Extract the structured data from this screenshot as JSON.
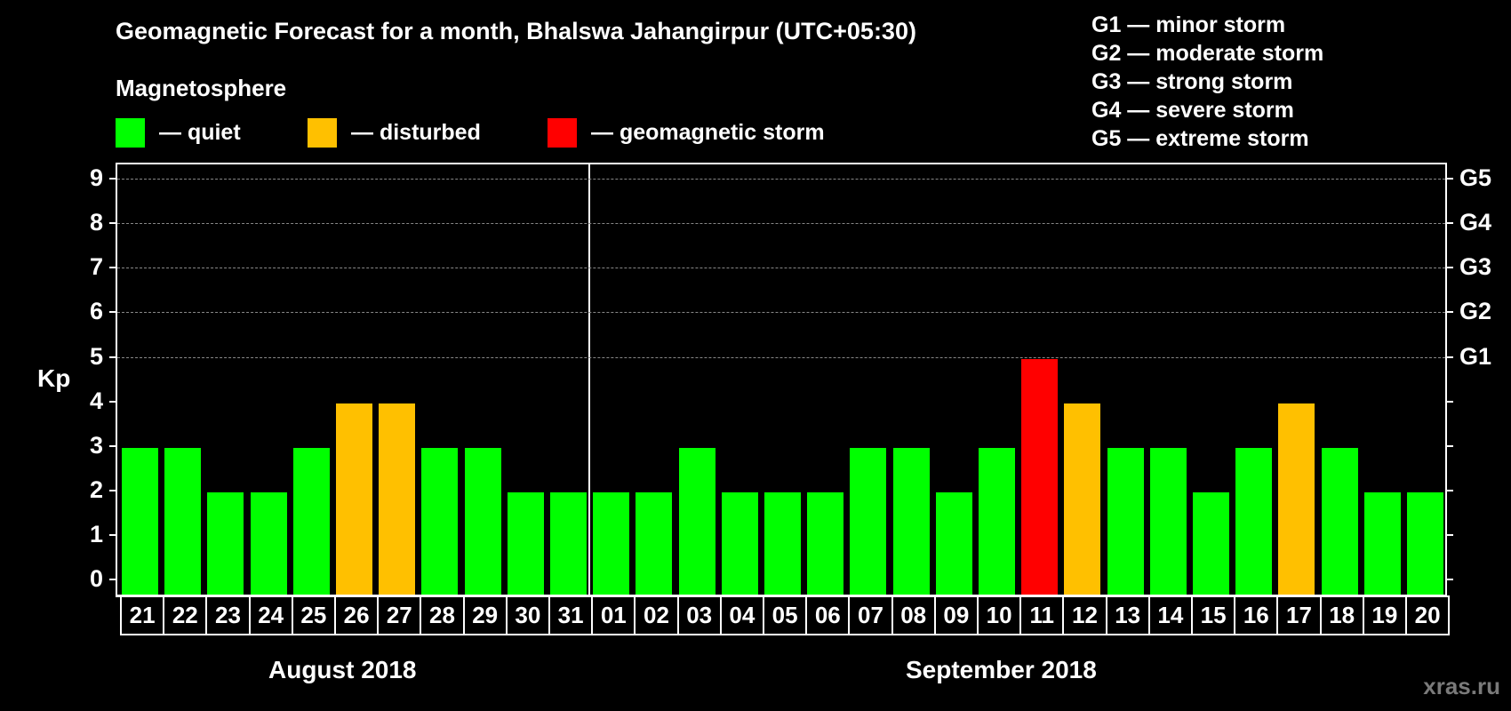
{
  "header": {
    "title": "Geomagnetic Forecast for a month, Bhalswa Jahangirpur (UTC+05:30)",
    "subtitle": "Magnetosphere"
  },
  "legend": [
    {
      "label": "— quiet",
      "color": "#00ff00"
    },
    {
      "label": "— disturbed",
      "color": "#ffc000"
    },
    {
      "label": "— geomagnetic storm",
      "color": "#ff0000"
    }
  ],
  "storm_scale": [
    "G1 — minor storm",
    "G2 — moderate storm",
    "G3 — strong storm",
    "G4 — severe storm",
    "G5 — extreme storm"
  ],
  "axis": {
    "y_label": "Kp",
    "y_ticks": [
      "0",
      "1",
      "2",
      "3",
      "4",
      "5",
      "6",
      "7",
      "8",
      "9"
    ],
    "right_ticks": [
      {
        "kp": 5,
        "label": "G1"
      },
      {
        "kp": 6,
        "label": "G2"
      },
      {
        "kp": 7,
        "label": "G3"
      },
      {
        "kp": 8,
        "label": "G4"
      },
      {
        "kp": 9,
        "label": "G5"
      }
    ]
  },
  "months": [
    {
      "label": "August 2018"
    },
    {
      "label": "September 2018"
    }
  ],
  "watermark": "xras.ru",
  "colors": {
    "quiet": "#00ff00",
    "disturbed": "#ffc000",
    "storm": "#ff0000",
    "grid": "#888888",
    "background": "#000000"
  },
  "chart_data": {
    "type": "bar",
    "title": "Geomagnetic Forecast for a month, Bhalswa Jahangirpur (UTC+05:30)",
    "xlabel": "",
    "ylabel": "Kp",
    "ylim": [
      0,
      9
    ],
    "grid": "dashed horizontal at Kp 5–9",
    "categories": [
      "21",
      "22",
      "23",
      "24",
      "25",
      "26",
      "27",
      "28",
      "29",
      "30",
      "31",
      "01",
      "02",
      "03",
      "04",
      "05",
      "06",
      "07",
      "08",
      "09",
      "10",
      "11",
      "12",
      "13",
      "14",
      "15",
      "16",
      "17",
      "18",
      "19",
      "20"
    ],
    "month_groups": [
      {
        "label": "August 2018",
        "from": "21",
        "to": "31"
      },
      {
        "label": "September 2018",
        "from": "01",
        "to": "20"
      }
    ],
    "values": [
      3,
      3,
      2,
      2,
      3,
      4,
      4,
      3,
      3,
      2,
      2,
      2,
      2,
      3,
      2,
      2,
      2,
      3,
      3,
      2,
      3,
      5,
      4,
      3,
      3,
      2,
      3,
      4,
      3,
      2,
      2
    ],
    "levels": [
      "quiet",
      "quiet",
      "quiet",
      "quiet",
      "quiet",
      "disturbed",
      "disturbed",
      "quiet",
      "quiet",
      "quiet",
      "quiet",
      "quiet",
      "quiet",
      "quiet",
      "quiet",
      "quiet",
      "quiet",
      "quiet",
      "quiet",
      "quiet",
      "quiet",
      "storm",
      "disturbed",
      "quiet",
      "quiet",
      "quiet",
      "quiet",
      "disturbed",
      "quiet",
      "quiet",
      "quiet"
    ],
    "legend": [
      "quiet",
      "disturbed",
      "geomagnetic storm"
    ],
    "secondary_axis": {
      "5": "G1",
      "6": "G2",
      "7": "G3",
      "8": "G4",
      "9": "G5"
    }
  }
}
